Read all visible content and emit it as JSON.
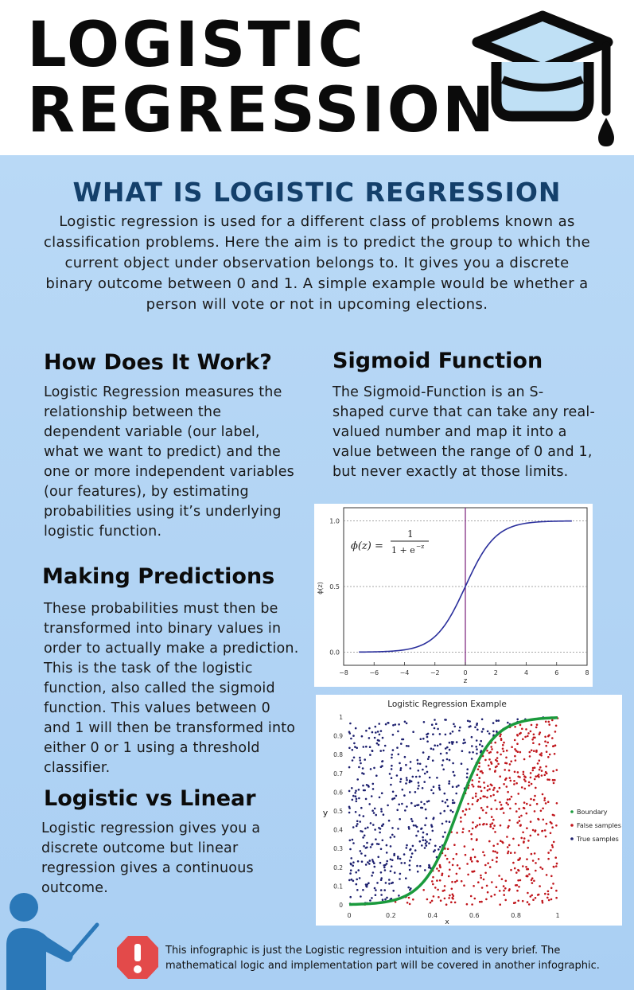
{
  "header": {
    "title_line1": "LOGISTIC",
    "title_line2": "REGRESSION",
    "icon": "graduation-cap-icon"
  },
  "intro": {
    "title": "WHAT IS LOGISTIC REGRESSION",
    "text": "Logistic regression is used for a different class of problems known as classification problems. Here the aim is to predict the group to which the current object under observation belongs to. It gives you a discrete binary outcome between 0 and 1. A simple example would be whether a person will vote or not in upcoming elections."
  },
  "how": {
    "title": "How Does It Work?",
    "text": "Logistic Regression measures the relationship between the dependent variable (our label, what we want to predict) and the one or more independent variables (our features), by estimating probabilities using it’s underlying logistic function."
  },
  "sigmoid": {
    "title": "Sigmoid Function",
    "text": "The Sigmoid-Function is an S-shaped curve that can take any real-valued number and map it into a value between the range of 0 and 1, but never exactly at those limits."
  },
  "predictions": {
    "title": "Making Predictions",
    "text": "These probabilities must then be transformed into binary values in order to actually make a prediction. This is the task of the logistic function, also called the sigmoid function. This values between 0 and 1 will then be transformed into either 0 or 1 using a threshold classifier."
  },
  "linear": {
    "title": "Logistic vs Linear",
    "text": "Logistic regression gives you a discrete outcome but linear regression gives a continuous outcome."
  },
  "footer": {
    "note": "This infographic is just the Logistic regression intuition and is very brief. The mathematical logic and implementation part will be covered in another infographic.",
    "warning_icon": "warning-icon",
    "person_icon": "teacher-pointer-icon"
  },
  "chart_data": [
    {
      "type": "line",
      "title": "",
      "formula_lhs": "ϕ(z) =",
      "formula_num": "1",
      "formula_den": "1 + e",
      "formula_exp": "−z",
      "xlabel": "z",
      "ylabel": "ϕ(z)",
      "xlim": [
        -8,
        8
      ],
      "ylim": [
        -0.1,
        1.1
      ],
      "x_ticks": [
        "−8",
        "−6",
        "−4",
        "−2",
        "0",
        "2",
        "4",
        "6",
        "8"
      ],
      "y_ticks": [
        "0.0",
        "0.5",
        "1.0"
      ],
      "function": "sigmoid",
      "x_range": [
        -7,
        7
      ],
      "hlines": [
        0.0,
        0.5,
        1.0
      ],
      "vline": 0,
      "colors": {
        "curve": "#2a2f9c",
        "vline": "#7a1f7a"
      }
    },
    {
      "type": "scatter",
      "title": "Logistic Regression Example",
      "xlabel": "x",
      "ylabel": "y",
      "xlim": [
        0,
        1
      ],
      "ylim": [
        0,
        1
      ],
      "x_ticks": [
        "0",
        "0.2",
        "0.4",
        "0.6",
        "0.8",
        "1"
      ],
      "y_ticks": [
        "0",
        "0.1",
        "0.2",
        "0.3",
        "0.4",
        "0.5",
        "0.6",
        "0.7",
        "0.8",
        "0.9",
        "1"
      ],
      "series": [
        {
          "name": "Boundary",
          "color": "#1a9a3c"
        },
        {
          "name": "False samples",
          "color": "#c0151b"
        },
        {
          "name": "True samples",
          "color": "#1c1f6e"
        }
      ],
      "legend": "right"
    }
  ]
}
